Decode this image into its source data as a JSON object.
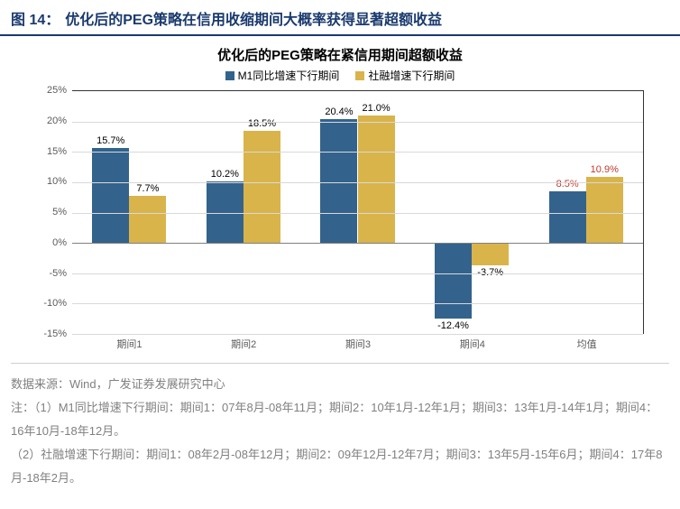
{
  "header": {
    "fig_label": "图 14：",
    "fig_title": "优化后的PEG策略在信用收缩期间大概率获得显著超额收益"
  },
  "chart": {
    "type": "bar",
    "title": "优化后的PEG策略在紧信用期间超额收益",
    "legend": [
      {
        "label": "M1同比增速下行期间",
        "color": "#33638d"
      },
      {
        "label": "社融增速下行期间",
        "color": "#d9b44a"
      }
    ],
    "categories": [
      "期间1",
      "期间2",
      "期间3",
      "期间4",
      "均值"
    ],
    "series": [
      {
        "name": "M1同比增速下行期间",
        "color": "#33638d",
        "values": [
          15.7,
          10.2,
          20.4,
          -12.4,
          8.5
        ],
        "labels": [
          "15.7%",
          "10.2%",
          "20.4%",
          "-12.4%",
          "8.5%"
        ],
        "label_colors": [
          "#000000",
          "#000000",
          "#000000",
          "#000000",
          "#c0392b"
        ]
      },
      {
        "name": "社融增速下行期间",
        "color": "#d9b44a",
        "values": [
          7.7,
          18.5,
          21.0,
          -3.7,
          10.9
        ],
        "labels": [
          "7.7%",
          "18.5%",
          "21.0%",
          "-3.7%",
          "10.9%"
        ],
        "label_colors": [
          "#000000",
          "#000000",
          "#000000",
          "#000000",
          "#c0392b"
        ]
      }
    ],
    "y": {
      "min": -15,
      "max": 25,
      "step": 5,
      "ticks": [
        -15,
        -10,
        -5,
        0,
        5,
        10,
        15,
        20,
        25
      ],
      "tick_labels": [
        "-15%",
        "-10%",
        "-5%",
        "0%",
        "5%",
        "10%",
        "15%",
        "20%",
        "25%"
      ]
    },
    "style": {
      "bar_width_pct": 6.5,
      "group_gap_pct": 0,
      "background": "#ffffff",
      "grid_color": "#d9d9d9",
      "border_color": "#333333",
      "label_fontsize": 11,
      "title_fontsize": 15
    }
  },
  "notes": {
    "source_label": "数据来源：",
    "source_text": "Wind，广发证券发展研究中心",
    "note_lines": [
      "注：（1）M1同比增速下行期间：期间1：07年8月-08年11月；期间2：10年1月-12年1月；期间3：13年1月-14年1月；期间4：16年10月-18年12月。",
      "（2）社融增速下行期间：期间1：08年2月-08年12月；期间2：09年12月-12年7月；期间3：13年5月-15年6月；期间4：17年8月-18年2月。"
    ]
  }
}
